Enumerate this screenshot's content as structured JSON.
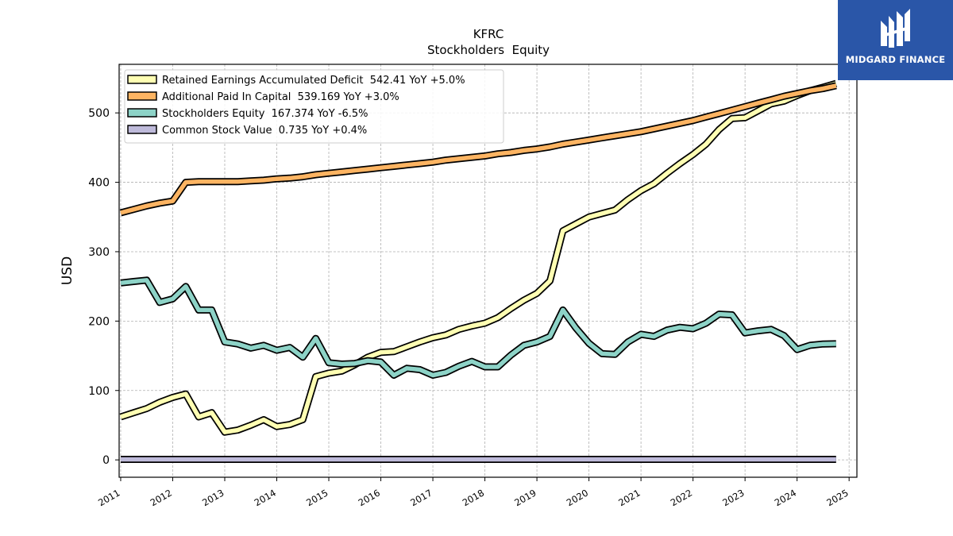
{
  "header": {
    "title": "KFRC",
    "subtitle": "Stockholders  Equity"
  },
  "logo": {
    "text": "MIDGARD FINANCE",
    "icon": "midgard-logo-icon"
  },
  "chart_data": {
    "type": "line",
    "ylabel": "USD",
    "xlabel": "",
    "ylim": [
      -25,
      570
    ],
    "xlim": [
      2010.97,
      2025.15
    ],
    "yticks": [
      0,
      100,
      200,
      300,
      400,
      500
    ],
    "xticks": [
      "2011",
      "2012",
      "2013",
      "2014",
      "2015",
      "2016",
      "2017",
      "2018",
      "2019",
      "2020",
      "2021",
      "2022",
      "2023",
      "2024",
      "2025"
    ],
    "grid": true,
    "legend_position": "top-left",
    "series": [
      {
        "name": "Retained Earnings Accumulated Deficit  542.41 YoY +5.0%",
        "color": "#ffffb3",
        "points": [
          [
            2011.0,
            62
          ],
          [
            2011.25,
            68
          ],
          [
            2011.5,
            74
          ],
          [
            2011.75,
            83
          ],
          [
            2012.0,
            90
          ],
          [
            2012.25,
            95
          ],
          [
            2012.5,
            62
          ],
          [
            2012.75,
            68
          ],
          [
            2013.0,
            40
          ],
          [
            2013.25,
            43
          ],
          [
            2013.5,
            50
          ],
          [
            2013.75,
            58
          ],
          [
            2014.0,
            48
          ],
          [
            2014.25,
            51
          ],
          [
            2014.5,
            58
          ],
          [
            2014.75,
            120
          ],
          [
            2015.0,
            125
          ],
          [
            2015.25,
            128
          ],
          [
            2015.5,
            137
          ],
          [
            2015.75,
            148
          ],
          [
            2016.0,
            155
          ],
          [
            2016.25,
            156
          ],
          [
            2016.5,
            163
          ],
          [
            2016.75,
            170
          ],
          [
            2017.0,
            176
          ],
          [
            2017.25,
            180
          ],
          [
            2017.5,
            188
          ],
          [
            2017.75,
            193
          ],
          [
            2018.0,
            197
          ],
          [
            2018.25,
            205
          ],
          [
            2018.5,
            218
          ],
          [
            2018.75,
            230
          ],
          [
            2019.0,
            240
          ],
          [
            2019.25,
            258
          ],
          [
            2019.5,
            330
          ],
          [
            2019.75,
            340
          ],
          [
            2020.0,
            350
          ],
          [
            2020.25,
            355
          ],
          [
            2020.5,
            360
          ],
          [
            2020.75,
            375
          ],
          [
            2021.0,
            388
          ],
          [
            2021.25,
            398
          ],
          [
            2021.5,
            413
          ],
          [
            2021.75,
            427
          ],
          [
            2022.0,
            440
          ],
          [
            2022.25,
            455
          ],
          [
            2022.5,
            476
          ],
          [
            2022.75,
            492
          ],
          [
            2023.0,
            493
          ],
          [
            2023.25,
            503
          ],
          [
            2023.5,
            513
          ],
          [
            2023.75,
            517
          ],
          [
            2024.0,
            525
          ],
          [
            2024.25,
            532
          ],
          [
            2024.5,
            537
          ],
          [
            2024.75,
            542.41
          ]
        ]
      },
      {
        "name": "Additional Paid In Capital  539.169 YoY +3.0%",
        "color": "#fdb462",
        "points": [
          [
            2011.0,
            356
          ],
          [
            2011.25,
            361
          ],
          [
            2011.5,
            366
          ],
          [
            2011.75,
            370
          ],
          [
            2012.0,
            373
          ],
          [
            2012.25,
            400
          ],
          [
            2012.5,
            401
          ],
          [
            2012.75,
            401
          ],
          [
            2013.0,
            401
          ],
          [
            2013.25,
            401
          ],
          [
            2013.5,
            402
          ],
          [
            2013.75,
            403
          ],
          [
            2014.0,
            405
          ],
          [
            2014.25,
            406
          ],
          [
            2014.5,
            408
          ],
          [
            2014.75,
            411
          ],
          [
            2015.0,
            413
          ],
          [
            2015.25,
            415
          ],
          [
            2015.5,
            417
          ],
          [
            2015.75,
            419
          ],
          [
            2016.0,
            421
          ],
          [
            2016.25,
            423
          ],
          [
            2016.5,
            425
          ],
          [
            2016.75,
            427
          ],
          [
            2017.0,
            429
          ],
          [
            2017.25,
            432
          ],
          [
            2017.5,
            434
          ],
          [
            2017.75,
            436
          ],
          [
            2018.0,
            438
          ],
          [
            2018.25,
            441
          ],
          [
            2018.5,
            443
          ],
          [
            2018.75,
            446
          ],
          [
            2019.0,
            448
          ],
          [
            2019.25,
            451
          ],
          [
            2019.5,
            455
          ],
          [
            2019.75,
            458
          ],
          [
            2020.0,
            461
          ],
          [
            2020.25,
            464
          ],
          [
            2020.5,
            467
          ],
          [
            2020.75,
            470
          ],
          [
            2021.0,
            473
          ],
          [
            2021.25,
            477
          ],
          [
            2021.5,
            481
          ],
          [
            2021.75,
            485
          ],
          [
            2022.0,
            489
          ],
          [
            2022.25,
            494
          ],
          [
            2022.5,
            499
          ],
          [
            2022.75,
            504
          ],
          [
            2023.0,
            509
          ],
          [
            2023.25,
            514
          ],
          [
            2023.5,
            519
          ],
          [
            2023.75,
            524
          ],
          [
            2024.0,
            528
          ],
          [
            2024.25,
            532
          ],
          [
            2024.5,
            535
          ],
          [
            2024.75,
            539.169
          ]
        ]
      },
      {
        "name": "Stockholders Equity  167.374 YoY -6.5%",
        "color": "#8dd3c7",
        "points": [
          [
            2011.0,
            255
          ],
          [
            2011.25,
            257
          ],
          [
            2011.5,
            259
          ],
          [
            2011.75,
            227
          ],
          [
            2012.0,
            232
          ],
          [
            2012.25,
            250
          ],
          [
            2012.5,
            216
          ],
          [
            2012.75,
            216
          ],
          [
            2013.0,
            170
          ],
          [
            2013.25,
            167
          ],
          [
            2013.5,
            161
          ],
          [
            2013.75,
            165
          ],
          [
            2014.0,
            158
          ],
          [
            2014.25,
            162
          ],
          [
            2014.5,
            148
          ],
          [
            2014.75,
            175
          ],
          [
            2015.0,
            140
          ],
          [
            2015.25,
            138
          ],
          [
            2015.5,
            139
          ],
          [
            2015.75,
            143
          ],
          [
            2016.0,
            141
          ],
          [
            2016.25,
            122
          ],
          [
            2016.5,
            132
          ],
          [
            2016.75,
            130
          ],
          [
            2017.0,
            122
          ],
          [
            2017.25,
            126
          ],
          [
            2017.5,
            135
          ],
          [
            2017.75,
            142
          ],
          [
            2018.0,
            134
          ],
          [
            2018.25,
            134
          ],
          [
            2018.5,
            151
          ],
          [
            2018.75,
            165
          ],
          [
            2019.0,
            170
          ],
          [
            2019.25,
            178
          ],
          [
            2019.5,
            216
          ],
          [
            2019.75,
            190
          ],
          [
            2020.0,
            168
          ],
          [
            2020.25,
            153
          ],
          [
            2020.5,
            152
          ],
          [
            2020.75,
            170
          ],
          [
            2021.0,
            181
          ],
          [
            2021.25,
            178
          ],
          [
            2021.5,
            187
          ],
          [
            2021.75,
            191
          ],
          [
            2022.0,
            189
          ],
          [
            2022.25,
            197
          ],
          [
            2022.5,
            210
          ],
          [
            2022.75,
            209
          ],
          [
            2023.0,
            183
          ],
          [
            2023.25,
            186
          ],
          [
            2023.5,
            188
          ],
          [
            2023.75,
            179
          ],
          [
            2024.0,
            159
          ],
          [
            2024.25,
            165
          ],
          [
            2024.5,
            167
          ],
          [
            2024.75,
            167.374
          ]
        ]
      },
      {
        "name": "Common Stock Value  0.735 YoY +0.4%",
        "color": "#bebada",
        "points": [
          [
            2011.0,
            0.7
          ],
          [
            2024.75,
            0.735
          ]
        ]
      }
    ]
  }
}
